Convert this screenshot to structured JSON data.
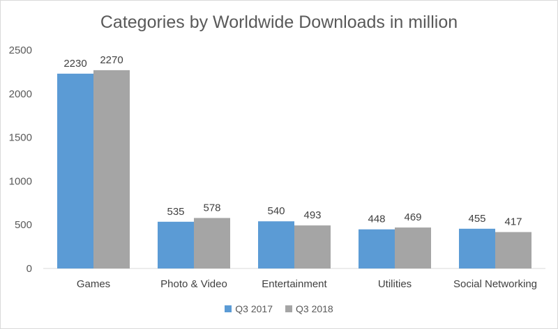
{
  "chart_data": {
    "type": "bar",
    "title": "Categories by Worldwide Downloads in million",
    "categories": [
      "Games",
      "Photo & Video",
      "Entertainment",
      "Utilities",
      "Social Networking"
    ],
    "series": [
      {
        "name": "Q3 2017",
        "values": [
          2230,
          535,
          540,
          448,
          455
        ],
        "color": "#5b9bd5"
      },
      {
        "name": "Q3 2018",
        "values": [
          2270,
          578,
          493,
          469,
          417
        ],
        "color": "#a5a5a5"
      }
    ],
    "ylim": [
      0,
      2500
    ],
    "yticks": [
      0,
      500,
      1000,
      1500,
      2000,
      2500
    ],
    "xlabel": "",
    "ylabel": "",
    "grid": false,
    "legend": "bottom"
  }
}
